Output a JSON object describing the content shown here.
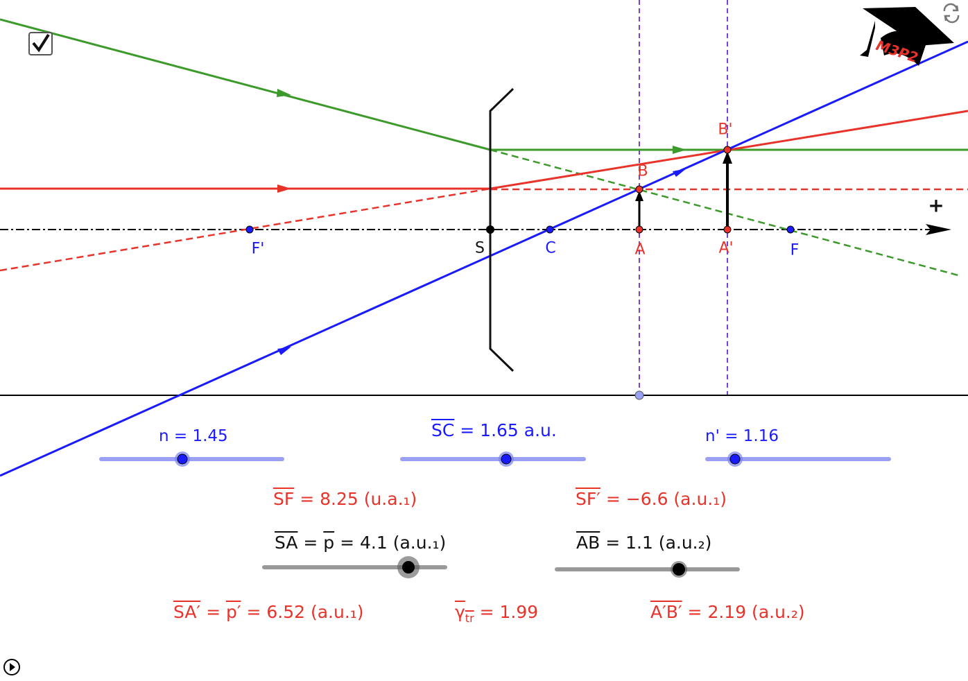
{
  "points": {
    "F_prime": "F'",
    "S": "S",
    "C": "C",
    "A": "A",
    "A_prime": "A'",
    "F": "F",
    "B": "B",
    "B_prime": "B'"
  },
  "axis_sign": "+",
  "logo_text": "M3P2",
  "sliders": {
    "n": {
      "label": "n = 1.45",
      "value": 1.45,
      "fraction": 0.45
    },
    "sc": {
      "label_name": "SC",
      "label_rest": " = 1.65 a.u.",
      "value": 1.65,
      "fraction": 0.57
    },
    "n_prime": {
      "label": "n' = 1.16",
      "value": 1.16,
      "fraction": 0.16
    },
    "sa": {
      "label_name": "SA",
      "label_mid": " = ",
      "label_p": "p",
      "label_rest": " = 4.1 (a.u.₁)",
      "value": 4.1,
      "fraction": 0.79
    },
    "ab": {
      "label_name": "AB",
      "label_rest": " =  1.1 (a.u.₂)",
      "value": 1.1,
      "fraction": 0.67
    }
  },
  "results": {
    "sf": {
      "name": "SF",
      "rest": " = 8.25 (u.a.₁)"
    },
    "sf_prime": {
      "name": "SF′",
      "rest": " = −6.6 (a.u.₁)"
    },
    "sa_prime": {
      "name": "SA′",
      "mid": " = ",
      "p": "p′",
      "rest": " = 6.52 (a.u.₁)"
    },
    "gamma": {
      "name": "γ",
      "sub": "tr",
      "rest": " = 1.99"
    },
    "ab_prime": {
      "name": "A′B′",
      "rest": " = 2.19 (a.u.₂)"
    }
  },
  "checkbox": {
    "checked": true
  },
  "colors": {
    "blue": "#1a1aff",
    "red": "#e8332a",
    "green": "#3c9a2a",
    "purple": "#7b3fe0",
    "slider_blue": "#9aa0f5",
    "slider_gray": "#999999"
  }
}
